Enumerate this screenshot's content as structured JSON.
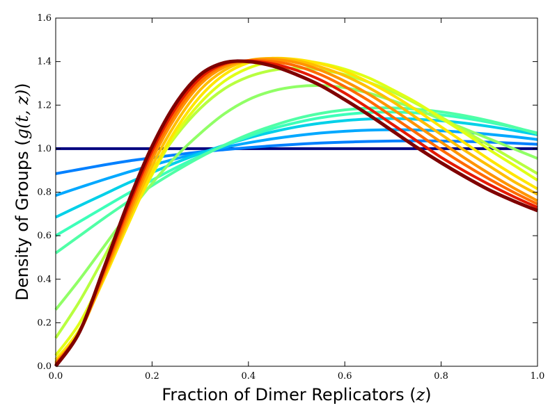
{
  "chart_data": {
    "type": "line",
    "title": "",
    "xlabel": {
      "text": "Fraction of Dimer Replicators (",
      "var": "z",
      "close": ")"
    },
    "ylabel": {
      "text": "Density of Groups (",
      "var": "g(t, z)",
      "close": ")"
    },
    "xlim": [
      0,
      1
    ],
    "ylim": [
      0,
      1.6
    ],
    "x_ticks": [
      "0.0",
      "0.2",
      "0.4",
      "0.6",
      "0.8",
      "1.0"
    ],
    "y_ticks": [
      "0.0",
      "0.2",
      "0.4",
      "0.6",
      "0.8",
      "1.0",
      "1.2",
      "1.4",
      "1.6"
    ],
    "grid": false,
    "legend": "none",
    "x": [
      0.0,
      0.05,
      0.1,
      0.15,
      0.2,
      0.25,
      0.3,
      0.35,
      0.4,
      0.45,
      0.5,
      0.55,
      0.6,
      0.65,
      0.7,
      0.75,
      0.8,
      0.85,
      0.9,
      0.95,
      1.0
    ],
    "series": [
      {
        "color": "#00007f",
        "values": [
          1.0,
          1.0,
          1.0,
          1.0,
          1.0,
          1.0,
          1.0,
          1.0,
          1.0,
          1.0,
          1.0,
          1.0,
          1.0,
          1.0,
          1.0,
          1.0,
          1.0,
          1.0,
          1.0,
          1.0,
          1.0
        ]
      },
      {
        "color": "#0080ff",
        "values": [
          0.885,
          0.905,
          0.925,
          0.943,
          0.958,
          0.972,
          0.985,
          0.995,
          1.005,
          1.013,
          1.02,
          1.026,
          1.03,
          1.033,
          1.035,
          1.036,
          1.035,
          1.033,
          1.03,
          1.025,
          1.02
        ]
      },
      {
        "color": "#00a8ff",
        "values": [
          0.785,
          0.822,
          0.858,
          0.892,
          0.924,
          0.954,
          0.982,
          1.006,
          1.027,
          1.045,
          1.06,
          1.072,
          1.08,
          1.085,
          1.087,
          1.086,
          1.082,
          1.075,
          1.066,
          1.055,
          1.042
        ]
      },
      {
        "color": "#00d0e8",
        "values": [
          0.685,
          0.738,
          0.79,
          0.842,
          0.89,
          0.936,
          0.978,
          1.016,
          1.049,
          1.077,
          1.1,
          1.117,
          1.129,
          1.136,
          1.138,
          1.135,
          1.128,
          1.117,
          1.102,
          1.084,
          1.064
        ]
      },
      {
        "color": "#3dffb9",
        "values": [
          0.6,
          0.665,
          0.73,
          0.794,
          0.855,
          0.913,
          0.966,
          1.014,
          1.056,
          1.092,
          1.12,
          1.142,
          1.157,
          1.166,
          1.168,
          1.164,
          1.155,
          1.14,
          1.121,
          1.098,
          1.072
        ]
      },
      {
        "color": "#50ffa6",
        "values": [
          0.52,
          0.6,
          0.68,
          0.756,
          0.83,
          0.898,
          0.961,
          1.016,
          1.065,
          1.105,
          1.138,
          1.162,
          1.178,
          1.186,
          1.187,
          1.181,
          1.169,
          1.151,
          1.128,
          1.1,
          1.069
        ]
      },
      {
        "color": "#90ff66",
        "values": [
          0.26,
          0.4,
          0.55,
          0.7,
          0.84,
          0.965,
          1.07,
          1.16,
          1.225,
          1.265,
          1.285,
          1.29,
          1.28,
          1.255,
          1.22,
          1.18,
          1.135,
          1.09,
          1.045,
          1.0,
          0.955
        ]
      },
      {
        "color": "#b8ff3f",
        "values": [
          0.13,
          0.3,
          0.5,
          0.71,
          0.9,
          1.06,
          1.185,
          1.275,
          1.33,
          1.36,
          1.37,
          1.362,
          1.34,
          1.305,
          1.26,
          1.205,
          1.145,
          1.08,
          1.015,
          0.95,
          0.885
        ]
      },
      {
        "color": "#e0ff17",
        "values": [
          0.05,
          0.2,
          0.42,
          0.66,
          0.88,
          1.07,
          1.21,
          1.31,
          1.37,
          1.4,
          1.405,
          1.392,
          1.365,
          1.325,
          1.27,
          1.21,
          1.14,
          1.07,
          0.995,
          0.925,
          0.855
        ]
      },
      {
        "color": "#ffe600",
        "values": [
          0.03,
          0.17,
          0.4,
          0.65,
          0.89,
          1.09,
          1.24,
          1.34,
          1.395,
          1.415,
          1.41,
          1.39,
          1.355,
          1.305,
          1.245,
          1.175,
          1.1,
          1.025,
          0.95,
          0.88,
          0.815
        ]
      },
      {
        "color": "#ffbe00",
        "values": [
          0.02,
          0.16,
          0.41,
          0.67,
          0.92,
          1.12,
          1.27,
          1.36,
          1.405,
          1.415,
          1.405,
          1.375,
          1.335,
          1.28,
          1.215,
          1.14,
          1.065,
          0.99,
          0.92,
          0.85,
          0.79
        ]
      },
      {
        "color": "#ff9400",
        "values": [
          0.015,
          0.16,
          0.42,
          0.69,
          0.95,
          1.15,
          1.295,
          1.375,
          1.405,
          1.41,
          1.395,
          1.36,
          1.31,
          1.25,
          1.18,
          1.105,
          1.03,
          0.955,
          0.885,
          0.82,
          0.76
        ]
      },
      {
        "color": "#ff6a00",
        "values": [
          0.01,
          0.16,
          0.43,
          0.71,
          0.97,
          1.17,
          1.31,
          1.385,
          1.405,
          1.4,
          1.38,
          1.34,
          1.285,
          1.22,
          1.145,
          1.07,
          0.995,
          0.925,
          0.86,
          0.8,
          0.745
        ]
      },
      {
        "color": "#e41a00",
        "values": [
          0.005,
          0.16,
          0.44,
          0.73,
          0.99,
          1.19,
          1.325,
          1.39,
          1.403,
          1.39,
          1.36,
          1.315,
          1.255,
          1.185,
          1.11,
          1.035,
          0.96,
          0.895,
          0.835,
          0.78,
          0.73
        ]
      },
      {
        "color": "#7f0000",
        "values": [
          0.0,
          0.16,
          0.45,
          0.75,
          1.01,
          1.21,
          1.34,
          1.395,
          1.4,
          1.38,
          1.34,
          1.29,
          1.225,
          1.155,
          1.08,
          1.005,
          0.935,
          0.87,
          0.81,
          0.76,
          0.715
        ]
      }
    ]
  }
}
